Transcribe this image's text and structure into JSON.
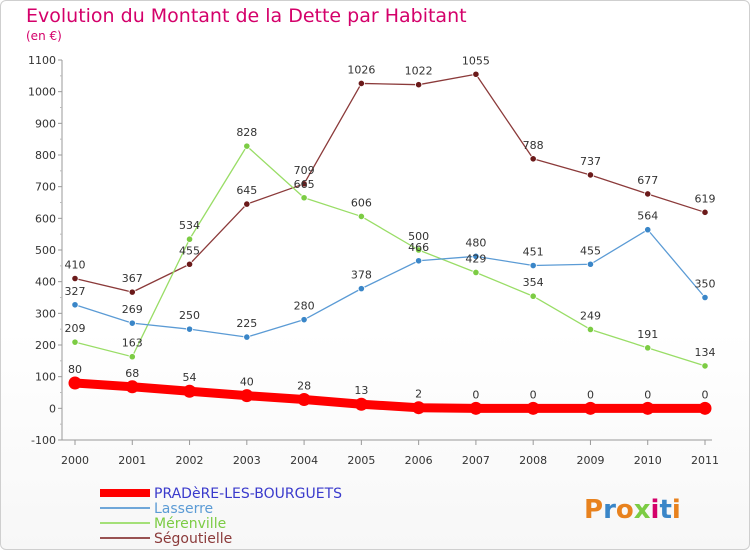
{
  "chart_data": {
    "type": "line",
    "title": "Evolution du Montant de la Dette par Habitant",
    "subtitle": "(en €)",
    "x": [
      "2000",
      "2001",
      "2002",
      "2003",
      "2004",
      "2005",
      "2006",
      "2007",
      "2008",
      "2009",
      "2010",
      "2011"
    ],
    "ylim": [
      -100,
      1100
    ],
    "yticks": [
      -100,
      0,
      100,
      200,
      300,
      400,
      500,
      600,
      700,
      800,
      900,
      1000,
      1100
    ],
    "grid": false,
    "legend_position": "bottom-left",
    "series": [
      {
        "name": "PRADèRE-LES-BOURGUETS",
        "color": "#ff0000",
        "text_color": "#3a3acc",
        "thick": true,
        "values": [
          80,
          68,
          54,
          40,
          28,
          13,
          2,
          0,
          0,
          0,
          0,
          0
        ]
      },
      {
        "name": "Lasserre",
        "color": "#5b9bd5",
        "point_color": "#3a86c8",
        "text_color": "#5b9bd5",
        "values": [
          327,
          269,
          250,
          225,
          280,
          378,
          466,
          480,
          451,
          455,
          564,
          350
        ]
      },
      {
        "name": "Mérenville",
        "color": "#99dd66",
        "point_color": "#7ccc44",
        "text_color": "#7ccc44",
        "values": [
          209,
          163,
          534,
          828,
          665,
          606,
          500,
          429,
          354,
          249,
          191,
          134
        ]
      },
      {
        "name": "Ségoutielle",
        "color": "#8b3a3a",
        "point_color": "#6b1a1a",
        "text_color": "#8b3a3a",
        "values": [
          410,
          367,
          455,
          645,
          709,
          1026,
          1022,
          1055,
          788,
          737,
          677,
          619
        ]
      }
    ],
    "data_labels": {
      "PRADèRE-LES-BOURGUETS": [
        "80",
        "68",
        "54",
        "40",
        "28",
        "13",
        "2",
        "0",
        "0",
        "0",
        "0",
        "0"
      ],
      "Lasserre": [
        "327",
        "269",
        "250",
        "225",
        "280",
        "378",
        "466",
        "480",
        "451",
        "455",
        "564",
        "350"
      ],
      "Mérenville": [
        "209",
        "163",
        "534",
        "828",
        "665",
        "606",
        "500",
        "429",
        "354",
        "249",
        "191",
        "134"
      ],
      "Ségoutielle": [
        "410",
        "367",
        "455",
        "645",
        "709",
        "1026",
        "1022",
        "1055",
        "788",
        "737",
        "677",
        "619"
      ]
    }
  },
  "logo": {
    "text": "Proxiti",
    "letters": [
      "P",
      "r",
      "o",
      "x",
      "i",
      "t",
      "i"
    ],
    "colors": [
      "#e8821e",
      "#3a86c8",
      "#e8821e",
      "#7ccc44",
      "#d4006a",
      "#3a86c8",
      "#e8821e"
    ]
  }
}
